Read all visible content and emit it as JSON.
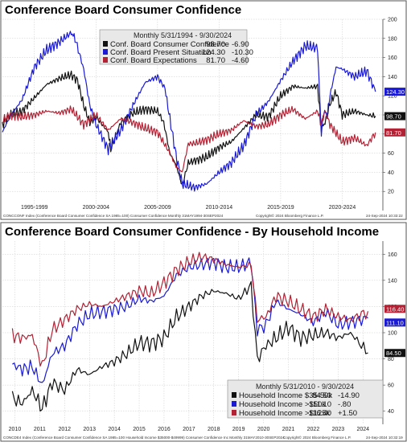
{
  "colors": {
    "black": "#111111",
    "blue": "#1a1ad6",
    "red": "#b22234",
    "grid": "#c8c8c8",
    "legend_bg": "#e8e8e8"
  },
  "chart_data": [
    {
      "type": "line",
      "title": "Conference Board Consumer Confidence",
      "legend_title": "Monthly 5/31/1994 - 9/30/2024",
      "legend_rows": [
        {
          "name": "Conf. Board Consumer Confidence",
          "value": "98.70",
          "change": "-6.90"
        },
        {
          "name": "Conf. Board Present Situation",
          "value": "124.30",
          "change": "-10.30"
        },
        {
          "name": "Conf. Board Expectations",
          "value": "81.70",
          "change": "-4.60"
        }
      ],
      "x_ticks": [
        "1995-1999",
        "2000-2004",
        "2005-2009",
        "2010-2014",
        "2015-2019",
        "2020-2024"
      ],
      "x_tick_years": [
        1997,
        2002,
        2007,
        2012,
        2017,
        2022
      ],
      "x_range": [
        1994.4,
        2025.3
      ],
      "ylim": [
        0,
        200
      ],
      "y_ticks": [
        20,
        40,
        60,
        80,
        100,
        120,
        140,
        160,
        180,
        200
      ],
      "last_value_labels": [
        "124.30",
        "98.70",
        "81.70"
      ],
      "footer_left": "CONCCONF Index (Conference Board Consumer Confidence SA 1985=100) Consumer Confidence  Monthly 31MAY1994-30SEP2024",
      "footer_mid": "Copyright© 2024 Bloomberg Finance L.P.",
      "footer_right": "24-Sep-2024 10:33:22",
      "series": [
        {
          "name": "Conf. Board Consumer Confidence",
          "color_key": "black",
          "x": [
            1994.4,
            1995,
            1996,
            1997,
            1998,
            1999,
            2000,
            2000.5,
            2001,
            2001.5,
            2002,
            2003,
            2003.2,
            2004,
            2005,
            2006,
            2007,
            2007.5,
            2008,
            2008.5,
            2009,
            2009.5,
            2010,
            2011,
            2012,
            2013,
            2014,
            2015,
            2016,
            2017,
            2018,
            2019,
            2020,
            2020.3,
            2020.6,
            2021,
            2021.5,
            2022,
            2023,
            2024,
            2024.7
          ],
          "y": [
            90,
            100,
            104,
            118,
            132,
            138,
            142,
            136,
            110,
            92,
            98,
            82,
            64,
            92,
            102,
            106,
            104,
            92,
            60,
            48,
            26,
            50,
            52,
            56,
            66,
            72,
            86,
            100,
            98,
            120,
            130,
            128,
            130,
            86,
            92,
            112,
            124,
            100,
            104,
            100,
            98.7
          ]
        },
        {
          "name": "Conf. Board Present Situation",
          "color_key": "blue",
          "x": [
            1994.4,
            1995,
            1996,
            1997,
            1998,
            1999,
            2000,
            2000.3,
            2001,
            2001.5,
            2002,
            2003,
            2004,
            2005,
            2006,
            2007,
            2007.6,
            2008,
            2008.5,
            2009,
            2010,
            2011,
            2012,
            2013,
            2014,
            2015,
            2016,
            2017,
            2018,
            2019,
            2020,
            2020.3,
            2020.5,
            2020.8,
            2021,
            2021.5,
            2022,
            2023,
            2024,
            2024.7
          ],
          "y": [
            82,
            98,
            116,
            150,
            168,
            176,
            186,
            180,
            148,
            110,
            90,
            64,
            84,
            110,
            134,
            140,
            128,
            96,
            58,
            28,
            24,
            28,
            40,
            50,
            68,
            100,
            114,
            136,
            156,
            172,
            170,
            80,
            104,
            100,
            120,
            150,
            148,
            140,
            146,
            124.3
          ]
        },
        {
          "name": "Conf. Board Expectations",
          "color_key": "red",
          "x": [
            1994.4,
            1995,
            1996,
            1997,
            1998,
            1999,
            2000,
            2001,
            2002,
            2003,
            2004,
            2005,
            2006,
            2007,
            2008,
            2008.5,
            2009,
            2009.5,
            2010,
            2011,
            2012,
            2013,
            2014,
            2015,
            2016,
            2017,
            2018,
            2019,
            2020,
            2020.3,
            2020.6,
            2021,
            2022,
            2023,
            2024,
            2024.7
          ],
          "y": [
            94,
            100,
            98,
            100,
            104,
            102,
            106,
            90,
            100,
            84,
            96,
            92,
            86,
            82,
            60,
            46,
            40,
            70,
            70,
            74,
            80,
            84,
            94,
            88,
            90,
            100,
            106,
            96,
            104,
            90,
            104,
            90,
            72,
            76,
            68,
            81.7
          ]
        }
      ]
    },
    {
      "type": "line",
      "title": "Conference Board Consumer Confidence - By Household Income",
      "legend_title": "Monthly 5/31/2010 - 9/30/2024",
      "legend_rows": [
        {
          "name": "Household Income $35-50k",
          "value": "84.50",
          "change": "-14.90"
        },
        {
          "name": "Household Income >$50k",
          "value": "111.10",
          "change": "-.80"
        },
        {
          "name": "Household Income >$125k",
          "value": "116.40",
          "change": "+1.50"
        }
      ],
      "x_ticks": [
        "2010",
        "2011",
        "2012",
        "2013",
        "2014",
        "2015",
        "2016",
        "2017",
        "2018",
        "2019",
        "2020",
        "2021",
        "2022",
        "2023",
        "2024"
      ],
      "x_tick_years": [
        2010.5,
        2011.5,
        2012.5,
        2013.5,
        2014.5,
        2015.5,
        2016.5,
        2017.5,
        2018.5,
        2019.5,
        2020.5,
        2021.5,
        2022.5,
        2023.5,
        2024.5
      ],
      "x_range": [
        2010.0,
        2025.3
      ],
      "ylim": [
        30,
        170
      ],
      "y_ticks": [
        40,
        60,
        80,
        100,
        120,
        140,
        160
      ],
      "last_value_labels": [
        "116.40",
        "111.10",
        "84.50"
      ],
      "footer_left": "CONCDE4 Index (Conference Board Consumer Confidence SA 1985=100 Household Income $35000-$49999) Consumer Confidence Inc  Monthly 31MAY2010-30SEP2024",
      "footer_mid": "Copyright© 2024 Bloomberg Finance L.P.",
      "footer_right": "24-Sep-2024 10:32:19",
      "series": [
        {
          "name": "Household Income $35-50k",
          "color_key": "black",
          "x": [
            2010.4,
            2010.8,
            2011.2,
            2011.6,
            2012,
            2012.5,
            2013,
            2013.5,
            2014,
            2014.5,
            2015,
            2015.5,
            2016,
            2016.5,
            2017,
            2017.5,
            2018,
            2018.5,
            2019,
            2019.5,
            2020,
            2020.25,
            2020.6,
            2021,
            2021.5,
            2022,
            2022.5,
            2023,
            2023.5,
            2024,
            2024.7
          ],
          "y": [
            50,
            46,
            56,
            42,
            62,
            56,
            72,
            68,
            74,
            78,
            84,
            92,
            92,
            96,
            112,
            120,
            128,
            132,
            130,
            126,
            136,
            80,
            90,
            96,
            104,
            96,
            98,
            100,
            96,
            100,
            84.5
          ]
        },
        {
          "name": "Household Income >$50k",
          "color_key": "blue",
          "x": [
            2010.4,
            2010.8,
            2011.2,
            2011.6,
            2012,
            2012.5,
            2013,
            2013.5,
            2014,
            2014.5,
            2015,
            2015.5,
            2016,
            2016.5,
            2017,
            2017.5,
            2018,
            2018.5,
            2019,
            2019.5,
            2020,
            2020.25,
            2020.6,
            2021,
            2021.5,
            2022,
            2022.5,
            2023,
            2023.5,
            2024,
            2024.7
          ],
          "y": [
            76,
            72,
            74,
            60,
            84,
            90,
            106,
            114,
            116,
            118,
            120,
            126,
            124,
            128,
            144,
            150,
            152,
            154,
            150,
            150,
            154,
            102,
            106,
            124,
            118,
            114,
            108,
            116,
            106,
            108,
            111.1
          ]
        },
        {
          "name": "Household Income >$125k",
          "color_key": "red",
          "x": [
            2010.4,
            2010.8,
            2011.2,
            2011.6,
            2012,
            2012.5,
            2013,
            2013.5,
            2014,
            2014.5,
            2015,
            2015.5,
            2016,
            2016.5,
            2017,
            2017.5,
            2018,
            2018.5,
            2019,
            2019.5,
            2020,
            2020.25,
            2020.6,
            2021,
            2021.5,
            2022,
            2022.5,
            2023,
            2023.5,
            2024,
            2024.7
          ],
          "y": [
            98,
            96,
            98,
            74,
            102,
            110,
            118,
            122,
            120,
            124,
            128,
            132,
            130,
            138,
            148,
            154,
            158,
            156,
            152,
            150,
            152,
            110,
            112,
            128,
            124,
            118,
            112,
            118,
            112,
            110,
            116.4
          ]
        }
      ]
    }
  ]
}
